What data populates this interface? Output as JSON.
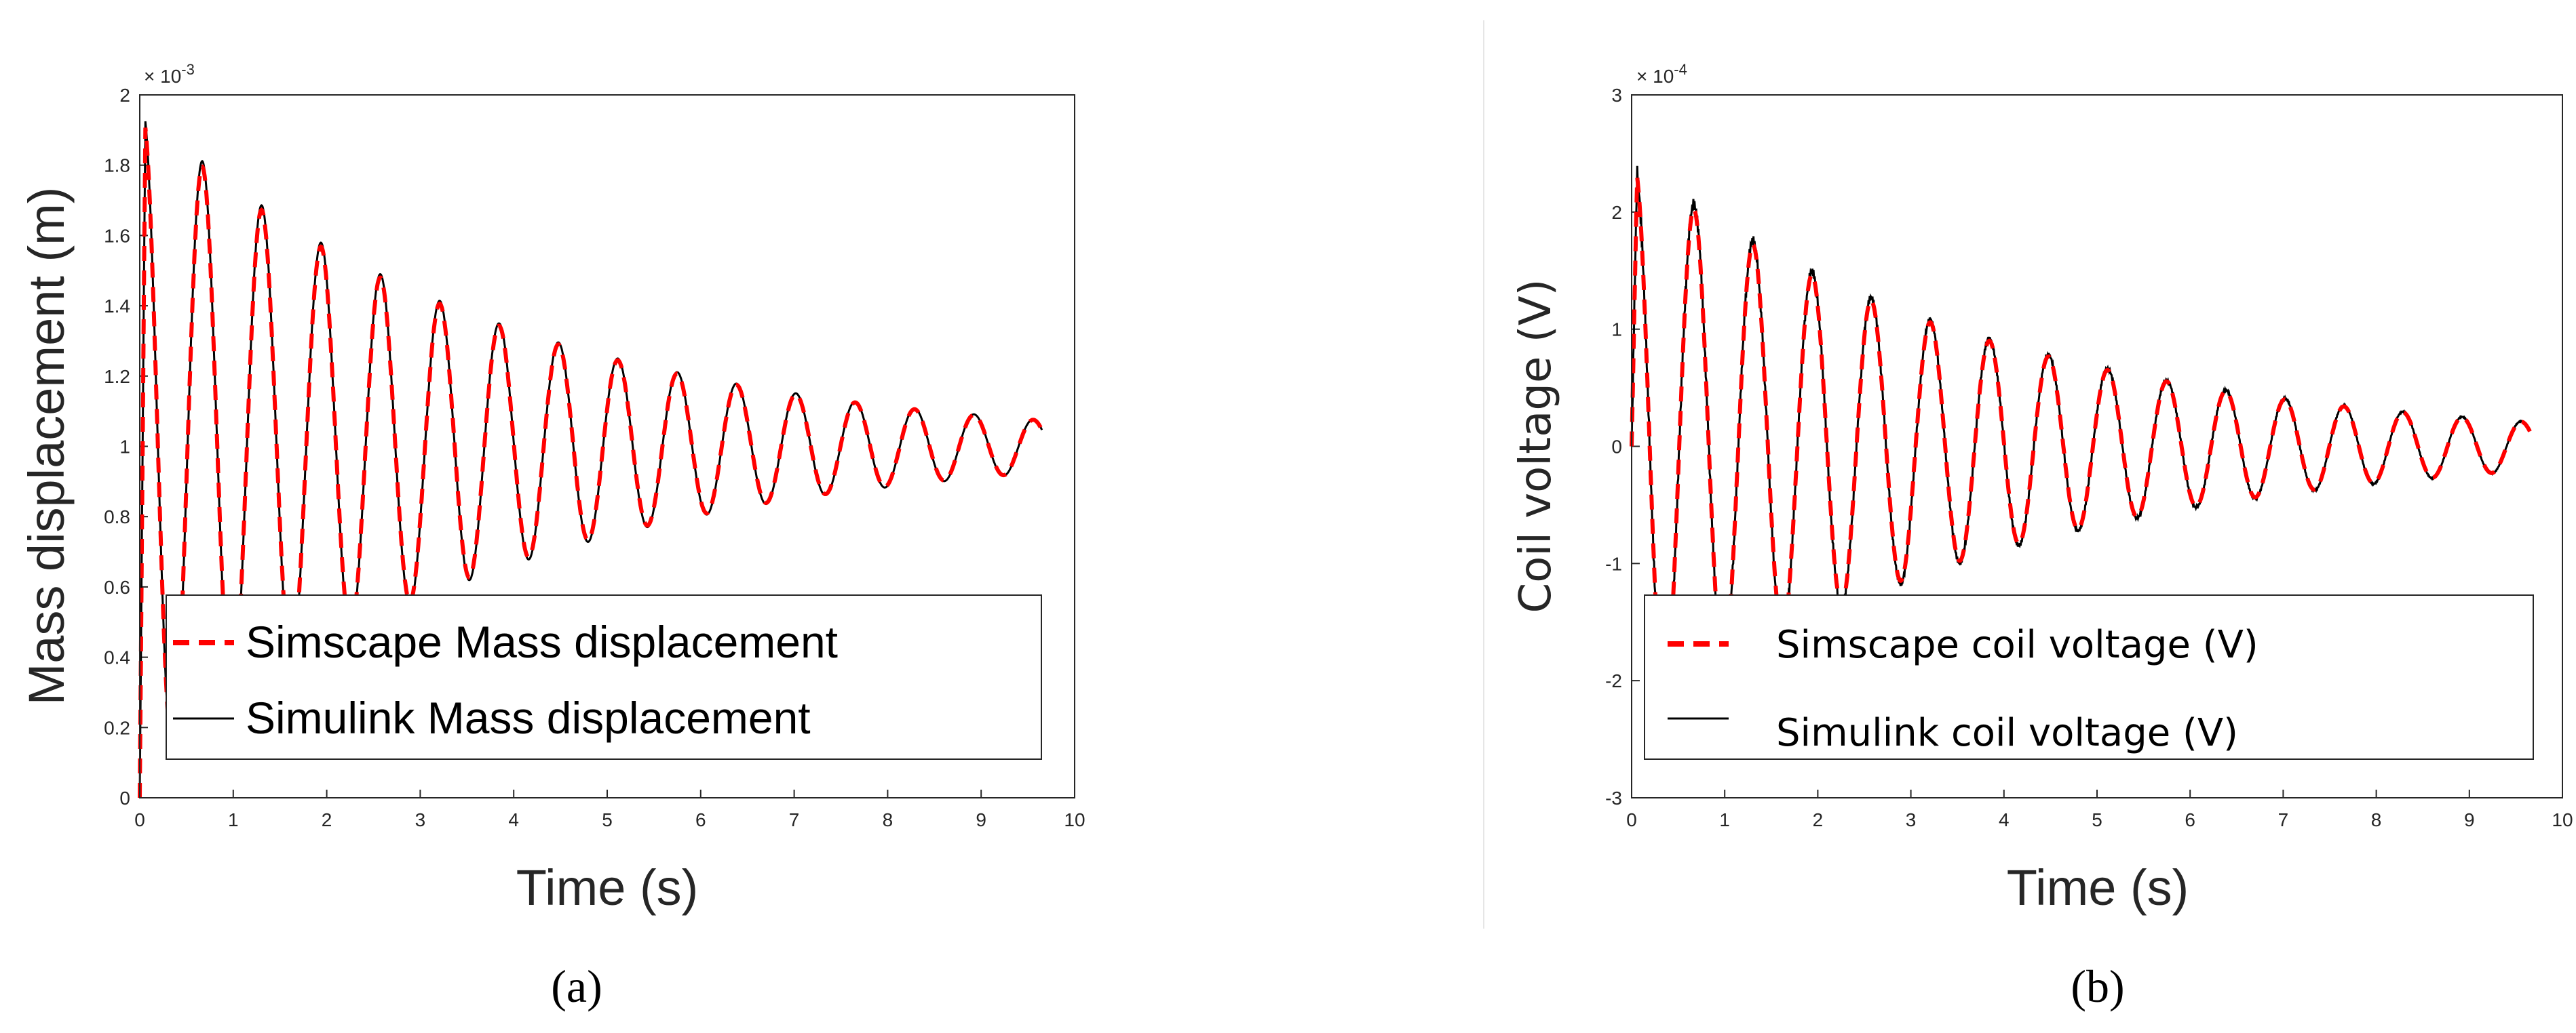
{
  "chart_data": [
    {
      "type": "line",
      "panel_label": "(a)",
      "xlabel": "Time (s)",
      "ylabel": "Mass displacement (m)",
      "y_scale_label": "× 10^-3",
      "y_scale_base": "× 10",
      "y_scale_exp": "-3",
      "xlim": [
        0,
        10
      ],
      "ylim": [
        0,
        2
      ],
      "xticks": [
        "0",
        "1",
        "2",
        "3",
        "4",
        "5",
        "6",
        "7",
        "8",
        "9",
        "10"
      ],
      "yticks": [
        "0",
        "0.2",
        "0.4",
        "0.6",
        "0.8",
        "1",
        "1.2",
        "1.4",
        "1.6",
        "1.8",
        "2"
      ],
      "legend_position": "bottom-right",
      "series": [
        {
          "name": "Simscape Mass displacement",
          "color": "#ff0000",
          "style": "dashed"
        },
        {
          "name": "Simulink Mass displacement",
          "color": "#000000",
          "style": "solid"
        }
      ],
      "signal": {
        "offset": 1.0,
        "initial_amplitude": 0.95,
        "frequency_hz": 1.575,
        "decay_rate": 0.265,
        "t_end": 9.65,
        "unit_scale": "1e-3 m"
      }
    },
    {
      "type": "line",
      "panel_label": "(b)",
      "xlabel": "Time (s)",
      "ylabel": "Coil voltage (V)",
      "y_scale_label": "× 10^-4",
      "y_scale_base": "× 10",
      "y_scale_exp": "-4",
      "xlim": [
        0,
        10
      ],
      "ylim": [
        -3,
        3
      ],
      "xticks": [
        "0",
        "1",
        "2",
        "3",
        "4",
        "5",
        "6",
        "7",
        "8",
        "9",
        "10"
      ],
      "yticks": [
        "-3",
        "-2",
        "-1",
        "0",
        "1",
        "2",
        "3"
      ],
      "legend_position": "bottom-right",
      "series": [
        {
          "name": "Simscape coil voltage (V)",
          "color": "#ff0000",
          "style": "dashed"
        },
        {
          "name": "Simulink coil voltage (V)",
          "color": "#000000",
          "style": "solid"
        }
      ],
      "signal": {
        "offset": 0.0,
        "initial_amplitude": 2.4,
        "frequency_hz": 1.575,
        "decay_rate": 0.255,
        "t_end": 9.65,
        "unit_scale": "1e-4 V"
      }
    }
  ]
}
